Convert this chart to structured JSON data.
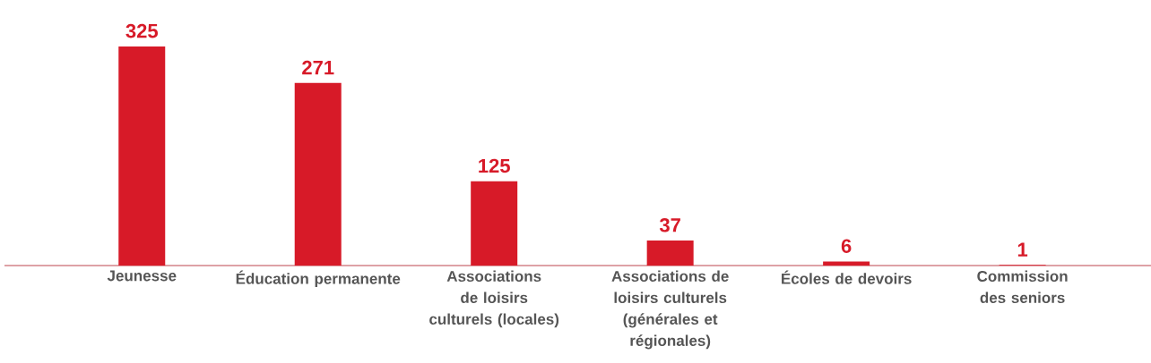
{
  "chart_data": {
    "type": "bar",
    "categories": [
      "Jeunesse",
      "Éducation permanente",
      "Associations de loisirs culturels (locales)",
      "Associations de loisirs culturels (générales et régionales)",
      "Écoles de devoirs",
      "Commission des seniors"
    ],
    "values": [
      325,
      271,
      125,
      37,
      6,
      1
    ],
    "color": "#d71a28",
    "data_labels": true
  }
}
